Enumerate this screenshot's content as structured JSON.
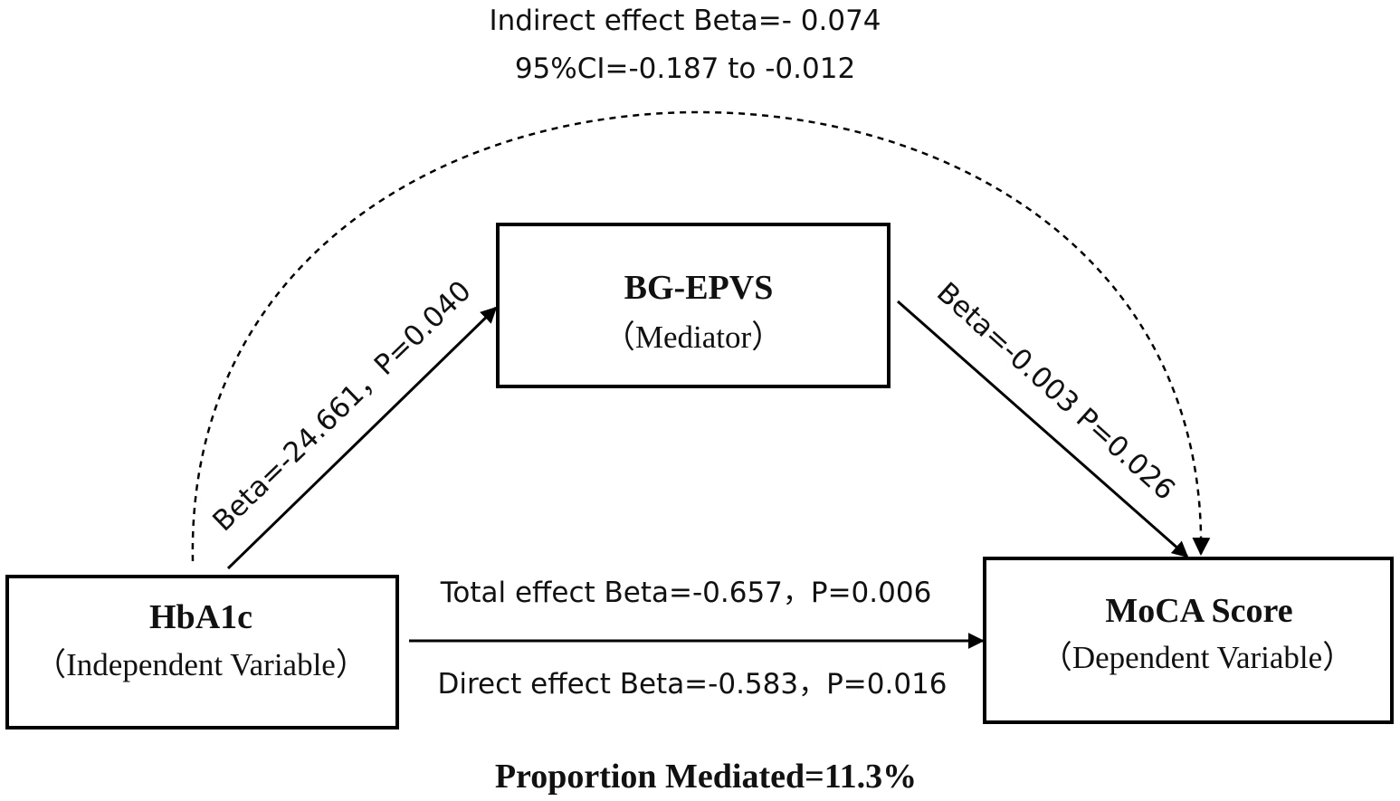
{
  "indirect": {
    "label": "Indirect effect Beta=- 0.074",
    "ci": "95%CI=-0.187 to -0.012"
  },
  "nodes": [
    {
      "title": "BG-EPVS",
      "role": "（Mediator）"
    },
    {
      "title": "HbA1c",
      "role": "（Independent Variable）"
    },
    {
      "title": "MoCA Score",
      "role": "（Dependent Variable）"
    }
  ],
  "edges": [
    {
      "label": "Beta=-24.661，P=0.040"
    },
    {
      "label": "Beta=-0.003 P=0.026"
    },
    {
      "label": "Total effect Beta=-0.657，P=0.006"
    },
    {
      "label": "Direct effect Beta=-0.583，P=0.016"
    }
  ],
  "footer": "Proportion Mediated=11.3%"
}
